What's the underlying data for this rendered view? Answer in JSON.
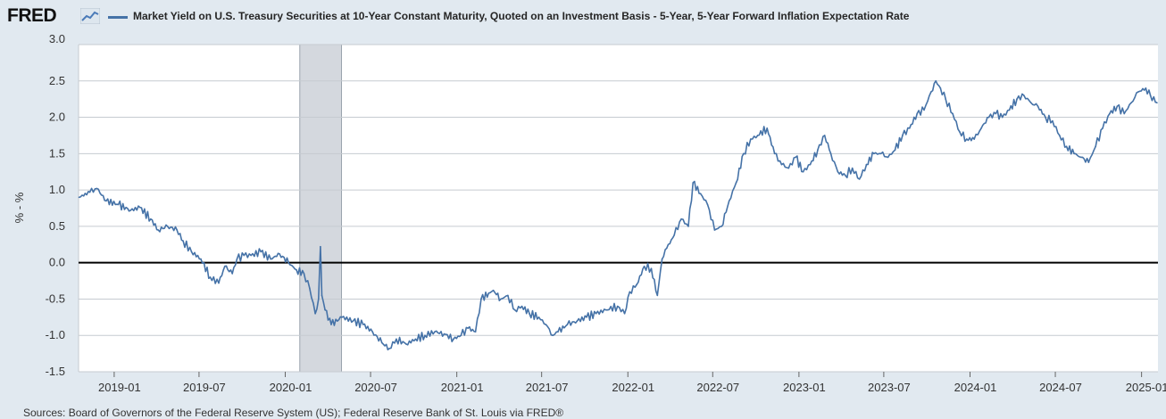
{
  "header": {
    "logo_text": "FRED",
    "logo_icon": "line-chart-icon"
  },
  "source_text": "Sources: Board of Governors of the Federal Reserve System (US); Federal Reserve Bank of St. Louis via FRED®",
  "colors": {
    "series": "#4572a7",
    "recession": "#d4d8de",
    "background": "#e1e9f0",
    "plot_background": "#ffffff",
    "zero_line": "#000000",
    "grid": "#c6cbd1"
  },
  "chart_data": {
    "type": "line",
    "title": "",
    "ylabel": "% - %",
    "xlabel": "",
    "ylim": [
      -1.5,
      3.0
    ],
    "xlim": [
      "2018-10-17",
      "2025-02-05"
    ],
    "y_ticks": [
      3.0,
      2.5,
      2.0,
      1.5,
      1.0,
      0.5,
      0.0,
      -0.5,
      -1.0,
      -1.5
    ],
    "y_tick_labels": [
      "3.0",
      "2.5",
      "2.0",
      "1.5",
      "1.0",
      "0.5",
      "0.0",
      "-0.5",
      "-1.0",
      "-1.5"
    ],
    "x_ticks": [
      "2019-01-01",
      "2019-07-01",
      "2020-01-01",
      "2020-07-01",
      "2021-01-01",
      "2021-07-01",
      "2022-01-01",
      "2022-07-01",
      "2023-01-01",
      "2023-07-01",
      "2024-01-01",
      "2024-07-01",
      "2025-01-01"
    ],
    "x_tick_labels": [
      "2019-01",
      "2019-07",
      "2020-01",
      "2020-07",
      "2021-01",
      "2021-07",
      "2022-01",
      "2022-07",
      "2023-01",
      "2023-07",
      "2024-01",
      "2024-07",
      "2025-01"
    ],
    "grid": "horizontal",
    "legend": "top-left",
    "reference_lines": [
      {
        "axis": "y",
        "value": 0
      }
    ],
    "shaded_regions": [
      {
        "label": "recession",
        "start": "2020-02-01",
        "end": "2020-04-30"
      }
    ],
    "series": [
      {
        "name": "Market Yield on U.S. Treasury Securities at 10-Year Constant Maturity, Quoted on an Investment Basis - 5-Year, 5-Year Forward Inflation Expectation Rate",
        "points": [
          [
            "2018-10-18",
            0.9
          ],
          [
            "2018-11-10",
            0.97
          ],
          [
            "2018-11-25",
            1.02
          ],
          [
            "2018-12-15",
            0.85
          ],
          [
            "2019-01-10",
            0.8
          ],
          [
            "2019-02-05",
            0.72
          ],
          [
            "2019-02-25",
            0.76
          ],
          [
            "2019-03-20",
            0.6
          ],
          [
            "2019-04-05",
            0.45
          ],
          [
            "2019-04-25",
            0.5
          ],
          [
            "2019-05-15",
            0.45
          ],
          [
            "2019-05-28",
            0.3
          ],
          [
            "2019-06-15",
            0.15
          ],
          [
            "2019-07-05",
            0.05
          ],
          [
            "2019-07-25",
            -0.2
          ],
          [
            "2019-08-12",
            -0.28
          ],
          [
            "2019-08-25",
            -0.05
          ],
          [
            "2019-09-10",
            -0.15
          ],
          [
            "2019-09-20",
            0.05
          ],
          [
            "2019-10-05",
            0.1
          ],
          [
            "2019-10-20",
            0.1
          ],
          [
            "2019-11-10",
            0.15
          ],
          [
            "2019-12-01",
            0.05
          ],
          [
            "2019-12-20",
            0.12
          ],
          [
            "2020-01-08",
            0.0
          ],
          [
            "2020-01-25",
            -0.1
          ],
          [
            "2020-02-10",
            -0.15
          ],
          [
            "2020-02-22",
            -0.35
          ],
          [
            "2020-03-05",
            -0.7
          ],
          [
            "2020-03-12",
            -0.5
          ],
          [
            "2020-03-16",
            0.22
          ],
          [
            "2020-03-19",
            -0.45
          ],
          [
            "2020-03-26",
            -0.65
          ],
          [
            "2020-04-08",
            -0.85
          ],
          [
            "2020-05-01",
            -0.75
          ],
          [
            "2020-05-25",
            -0.8
          ],
          [
            "2020-06-15",
            -0.85
          ],
          [
            "2020-07-05",
            -0.95
          ],
          [
            "2020-07-25",
            -1.1
          ],
          [
            "2020-08-10",
            -1.18
          ],
          [
            "2020-08-25",
            -1.05
          ],
          [
            "2020-09-15",
            -1.12
          ],
          [
            "2020-10-05",
            -1.05
          ],
          [
            "2020-10-25",
            -1.0
          ],
          [
            "2020-11-15",
            -0.95
          ],
          [
            "2020-12-05",
            -0.98
          ],
          [
            "2020-12-25",
            -1.05
          ],
          [
            "2021-01-10",
            -1.0
          ],
          [
            "2021-01-25",
            -0.9
          ],
          [
            "2021-02-10",
            -0.95
          ],
          [
            "2021-02-22",
            -0.5
          ],
          [
            "2021-03-10",
            -0.42
          ],
          [
            "2021-03-20",
            -0.38
          ],
          [
            "2021-04-05",
            -0.5
          ],
          [
            "2021-04-20",
            -0.45
          ],
          [
            "2021-05-05",
            -0.65
          ],
          [
            "2021-05-20",
            -0.6
          ],
          [
            "2021-06-05",
            -0.7
          ],
          [
            "2021-06-25",
            -0.75
          ],
          [
            "2021-07-10",
            -0.85
          ],
          [
            "2021-07-25",
            -1.0
          ],
          [
            "2021-08-05",
            -0.95
          ],
          [
            "2021-08-25",
            -0.85
          ],
          [
            "2021-09-15",
            -0.8
          ],
          [
            "2021-10-05",
            -0.75
          ],
          [
            "2021-10-25",
            -0.7
          ],
          [
            "2021-11-15",
            -0.65
          ],
          [
            "2021-12-10",
            -0.6
          ],
          [
            "2021-12-25",
            -0.7
          ],
          [
            "2022-01-05",
            -0.4
          ],
          [
            "2022-01-20",
            -0.3
          ],
          [
            "2022-02-05",
            -0.05
          ],
          [
            "2022-02-20",
            -0.08
          ],
          [
            "2022-03-05",
            -0.45
          ],
          [
            "2022-03-15",
            0.05
          ],
          [
            "2022-03-25",
            0.2
          ],
          [
            "2022-04-10",
            0.38
          ],
          [
            "2022-04-25",
            0.6
          ],
          [
            "2022-05-10",
            0.5
          ],
          [
            "2022-05-20",
            1.1
          ],
          [
            "2022-06-05",
            0.95
          ],
          [
            "2022-06-20",
            0.8
          ],
          [
            "2022-07-05",
            0.45
          ],
          [
            "2022-07-20",
            0.5
          ],
          [
            "2022-08-05",
            0.85
          ],
          [
            "2022-08-20",
            1.1
          ],
          [
            "2022-09-05",
            1.5
          ],
          [
            "2022-09-20",
            1.7
          ],
          [
            "2022-10-05",
            1.75
          ],
          [
            "2022-10-25",
            1.85
          ],
          [
            "2022-11-10",
            1.5
          ],
          [
            "2022-11-25",
            1.35
          ],
          [
            "2022-12-10",
            1.3
          ],
          [
            "2022-12-25",
            1.45
          ],
          [
            "2023-01-10",
            1.25
          ],
          [
            "2023-01-25",
            1.35
          ],
          [
            "2023-02-10",
            1.55
          ],
          [
            "2023-02-25",
            1.75
          ],
          [
            "2023-03-10",
            1.5
          ],
          [
            "2023-03-25",
            1.25
          ],
          [
            "2023-04-10",
            1.2
          ],
          [
            "2023-04-25",
            1.3
          ],
          [
            "2023-05-10",
            1.15
          ],
          [
            "2023-05-25",
            1.35
          ],
          [
            "2023-06-10",
            1.5
          ],
          [
            "2023-06-25",
            1.5
          ],
          [
            "2023-07-10",
            1.45
          ],
          [
            "2023-07-25",
            1.55
          ],
          [
            "2023-08-10",
            1.75
          ],
          [
            "2023-08-25",
            1.85
          ],
          [
            "2023-09-10",
            2.05
          ],
          [
            "2023-09-25",
            2.1
          ],
          [
            "2023-10-10",
            2.35
          ],
          [
            "2023-10-20",
            2.5
          ],
          [
            "2023-10-30",
            2.4
          ],
          [
            "2023-11-10",
            2.25
          ],
          [
            "2023-11-25",
            2.05
          ],
          [
            "2023-12-10",
            1.8
          ],
          [
            "2023-12-25",
            1.7
          ],
          [
            "2024-01-10",
            1.7
          ],
          [
            "2024-01-25",
            1.85
          ],
          [
            "2024-02-10",
            2.0
          ],
          [
            "2024-02-25",
            2.05
          ],
          [
            "2024-03-10",
            2.0
          ],
          [
            "2024-03-25",
            2.1
          ],
          [
            "2024-04-10",
            2.25
          ],
          [
            "2024-04-25",
            2.3
          ],
          [
            "2024-05-10",
            2.2
          ],
          [
            "2024-05-25",
            2.15
          ],
          [
            "2024-06-10",
            2.0
          ],
          [
            "2024-06-25",
            1.95
          ],
          [
            "2024-07-10",
            1.75
          ],
          [
            "2024-07-25",
            1.6
          ],
          [
            "2024-08-10",
            1.5
          ],
          [
            "2024-08-25",
            1.45
          ],
          [
            "2024-09-10",
            1.38
          ],
          [
            "2024-09-25",
            1.6
          ],
          [
            "2024-10-10",
            1.85
          ],
          [
            "2024-10-25",
            2.05
          ],
          [
            "2024-11-10",
            2.15
          ],
          [
            "2024-11-25",
            2.05
          ],
          [
            "2024-12-10",
            2.2
          ],
          [
            "2024-12-25",
            2.35
          ],
          [
            "2025-01-10",
            2.4
          ],
          [
            "2025-01-20",
            2.3
          ],
          [
            "2025-02-03",
            2.2
          ]
        ]
      }
    ]
  }
}
